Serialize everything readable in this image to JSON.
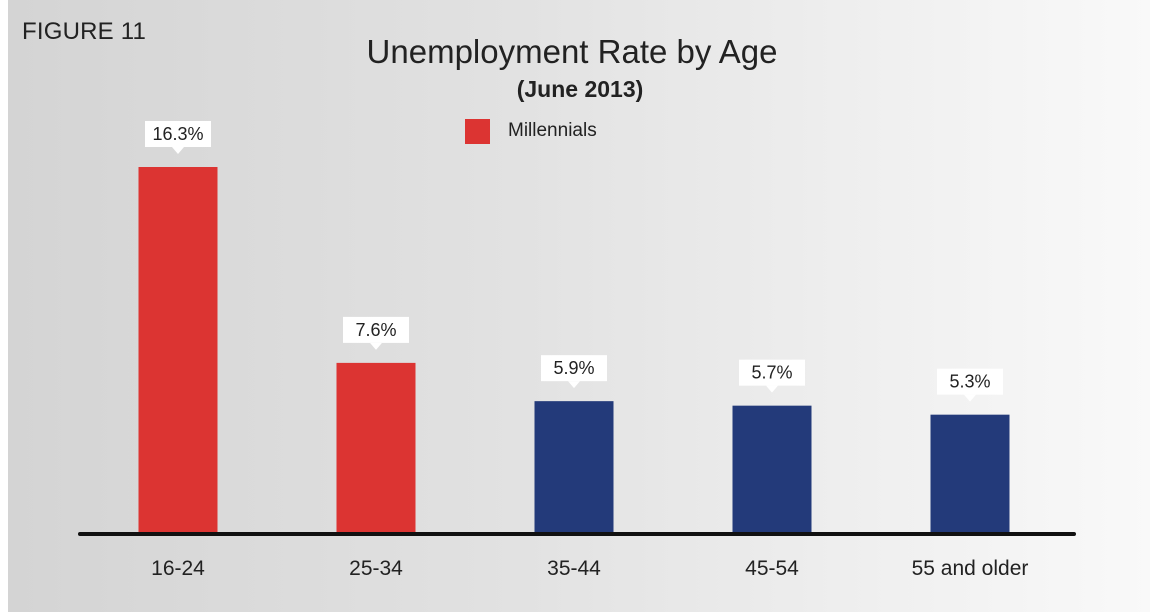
{
  "figure_label": "FIGURE 11",
  "colors": {
    "millennials": "#dc3432",
    "others": "#233a7a",
    "axis": "#111111",
    "callout_bg": "#ffffff"
  },
  "legend": {
    "label": "Millennials",
    "color": "#dc3432"
  },
  "chart_data": {
    "type": "bar",
    "title": "Unemployment Rate by Age",
    "subtitle": "(June 2013)",
    "categories": [
      "16-24",
      "25-34",
      "35-44",
      "45-54",
      "55 and older"
    ],
    "values": [
      16.3,
      7.6,
      5.9,
      5.7,
      5.3
    ],
    "value_labels": [
      "16.3%",
      "7.6%",
      "5.9%",
      "5.7%",
      "5.3%"
    ],
    "series_group": [
      "Millennials",
      "Millennials",
      "",
      "",
      ""
    ],
    "xlabel": "",
    "ylabel": "",
    "ylim": [
      0,
      16.3
    ],
    "grid": false,
    "legend_position": "top-center"
  }
}
